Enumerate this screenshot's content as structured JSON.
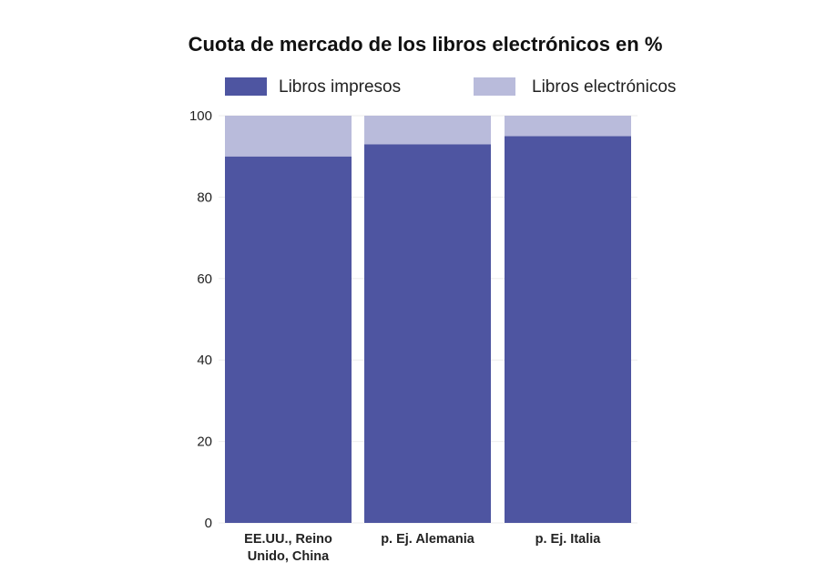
{
  "chart_data": {
    "type": "bar",
    "stacked": true,
    "title": "Cuota de mercado de los libros electrónicos en %",
    "categories": [
      [
        "EE.UU., Reino",
        "Unido, China"
      ],
      [
        "p. Ej. Alemania"
      ],
      [
        "p. Ej. Italia"
      ]
    ],
    "series": [
      {
        "name": "Libros impresos",
        "color": "#4e55a1",
        "values": [
          90,
          93,
          95
        ]
      },
      {
        "name": "Libros electrónicos",
        "color": "#b9bbdb",
        "values": [
          10,
          7,
          5
        ]
      }
    ],
    "xlabel": "",
    "ylabel": "",
    "ylim": [
      0,
      100
    ],
    "yticks": [
      0,
      20,
      40,
      60,
      80,
      100
    ],
    "grid": true,
    "legend_position": "top-center"
  }
}
